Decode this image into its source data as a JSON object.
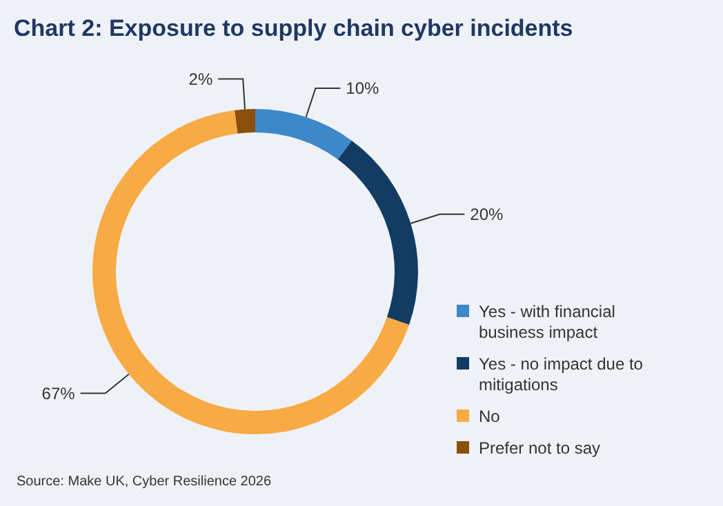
{
  "chart_data": {
    "type": "donut",
    "title": "Chart 2: Exposure to supply chain cyber incidents",
    "categories": [
      "Yes - with financial business impact",
      "Yes - no impact due to mitigations",
      "No",
      "Prefer not to say"
    ],
    "values": [
      10,
      20,
      67,
      2
    ],
    "colors": [
      "#3d88c9",
      "#123c64",
      "#f8aa45",
      "#8a4f0b"
    ],
    "value_labels": [
      "10%",
      "20%",
      "67%",
      "2%"
    ],
    "legend": "right",
    "annotations": [
      "Source: Make UK, Cyber Resilience 2026"
    ]
  }
}
